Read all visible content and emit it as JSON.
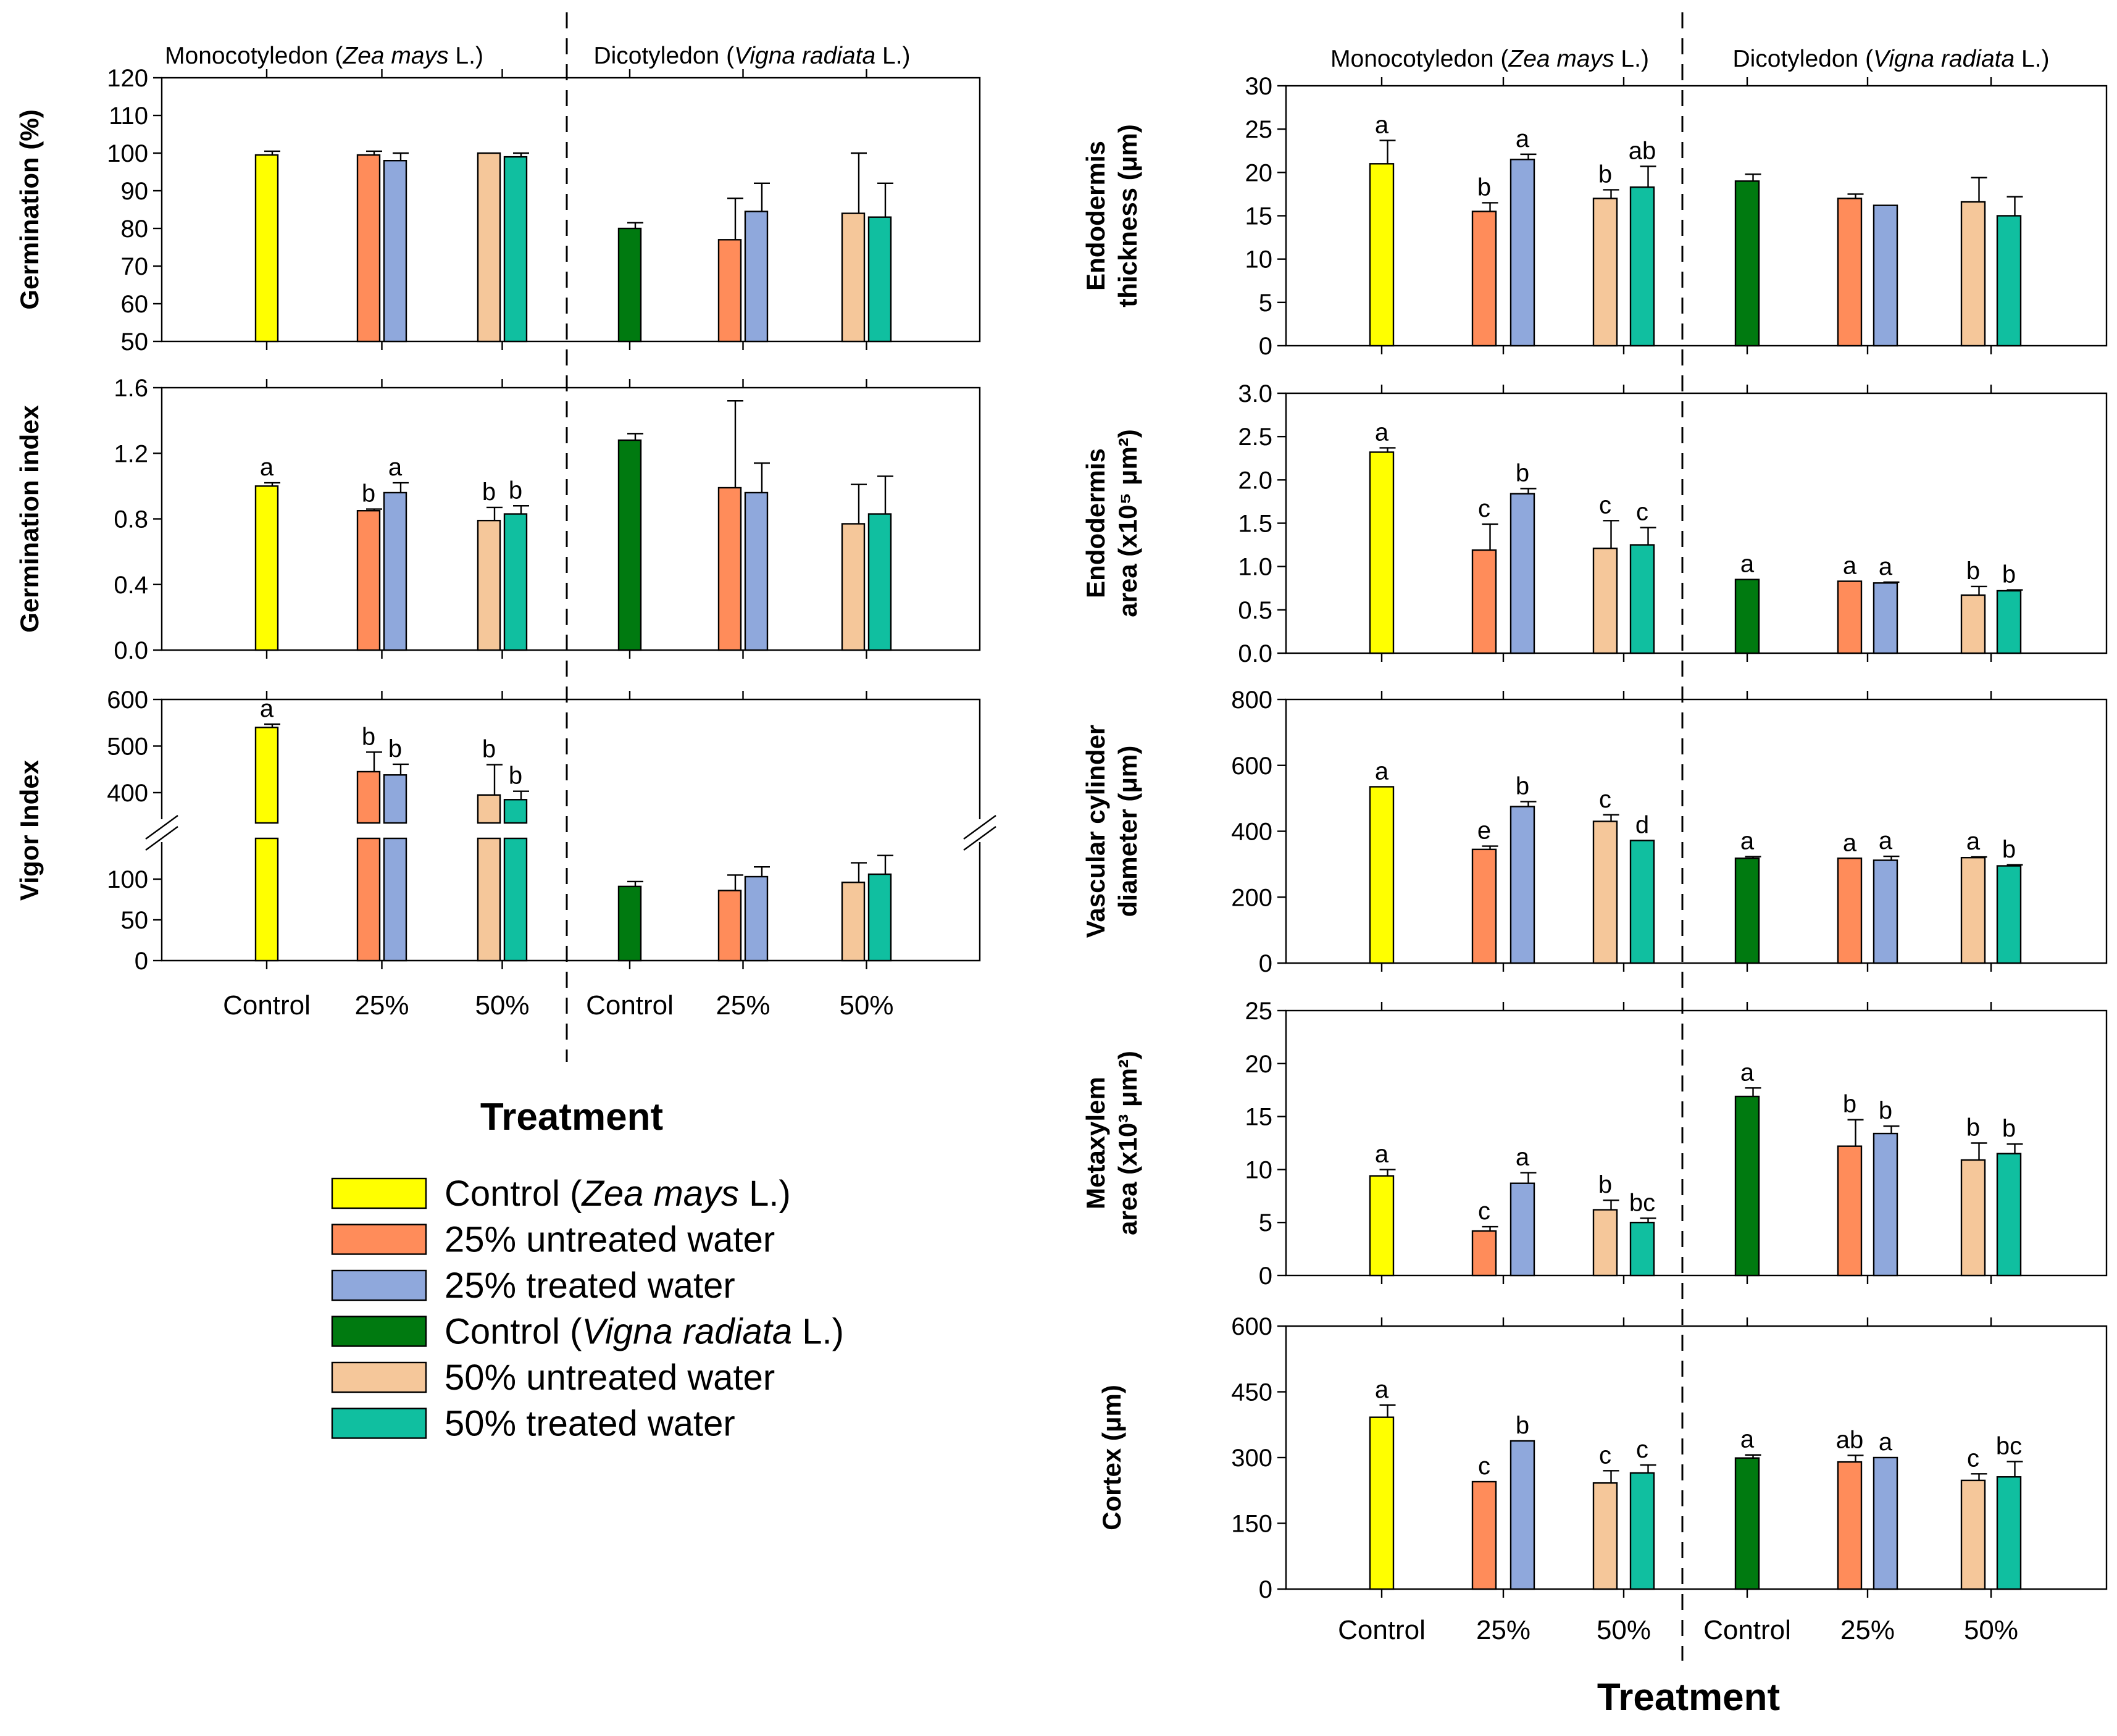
{
  "colors": {
    "control_zea": "#FFFF00",
    "untreated_25": "#FF8C5A",
    "treated_25": "#8FA8DC",
    "control_vigna": "#007A10",
    "untreated_50": "#F5C79A",
    "treated_50": "#10BFA0"
  },
  "headers": {
    "mono_prefix": "Monocotyledon (",
    "mono_species": "Zea mays",
    "mono_suffix": " L.)",
    "di_prefix": "Dicotyledon (",
    "di_species": "Vigna radiata",
    "di_suffix": " L.)"
  },
  "x_labels": [
    "Control",
    "25%",
    "50%",
    "Control",
    "25%",
    "50%"
  ],
  "x_title": "Treatment",
  "legend": [
    {
      "prefix": "Control (",
      "italic": "Zea mays",
      "suffix": " L.)",
      "color_key": "control_zea"
    },
    {
      "prefix": "25% untreated water",
      "italic": "",
      "suffix": "",
      "color_key": "untreated_25"
    },
    {
      "prefix": "25% treated water",
      "italic": "",
      "suffix": "",
      "color_key": "treated_25"
    },
    {
      "prefix": "Control (",
      "italic": "Vigna radiata",
      "suffix": " L.)",
      "color_key": "control_vigna"
    },
    {
      "prefix": "50% untreated water",
      "italic": "",
      "suffix": "",
      "color_key": "untreated_50"
    },
    {
      "prefix": "50% treated water",
      "italic": "",
      "suffix": "",
      "color_key": "treated_50"
    }
  ],
  "chart_data": [
    {
      "id": "germination",
      "type": "bar",
      "ylabel": "Germination (%)",
      "ylim": [
        50,
        120
      ],
      "yticks": [
        50,
        60,
        70,
        80,
        90,
        100,
        110,
        120
      ],
      "bars": [
        {
          "group": "Control",
          "species": "Zea mays",
          "series": "control_zea",
          "value": 99.5,
          "err": 1,
          "label": ""
        },
        {
          "group": "25%",
          "species": "Zea mays",
          "series": "untreated_25",
          "value": 99.5,
          "err": 1,
          "label": ""
        },
        {
          "group": "25%",
          "species": "Zea mays",
          "series": "treated_25",
          "value": 98,
          "err": 2,
          "label": ""
        },
        {
          "group": "50%",
          "species": "Zea mays",
          "series": "untreated_50",
          "value": 100,
          "err": 0,
          "label": ""
        },
        {
          "group": "50%",
          "species": "Zea mays",
          "series": "treated_50",
          "value": 99,
          "err": 1,
          "label": ""
        },
        {
          "group": "Control",
          "species": "Vigna radiata",
          "series": "control_vigna",
          "value": 80,
          "err": 1.5,
          "label": ""
        },
        {
          "group": "25%",
          "species": "Vigna radiata",
          "series": "untreated_25",
          "value": 77,
          "err": 11,
          "label": ""
        },
        {
          "group": "25%",
          "species": "Vigna radiata",
          "series": "treated_25",
          "value": 84.5,
          "err": 7.5,
          "label": ""
        },
        {
          "group": "50%",
          "species": "Vigna radiata",
          "series": "untreated_50",
          "value": 84,
          "err": 16,
          "label": ""
        },
        {
          "group": "50%",
          "species": "Vigna radiata",
          "series": "treated_50",
          "value": 83,
          "err": 9,
          "label": ""
        }
      ]
    },
    {
      "id": "germination-index",
      "type": "bar",
      "ylabel": "Germination index",
      "ylim": [
        0,
        1.6
      ],
      "yticks": [
        "0.0",
        "0.4",
        "0.8",
        "1.2",
        "1.6"
      ],
      "bars": [
        {
          "group": "Control",
          "species": "Zea mays",
          "series": "control_zea",
          "value": 1.0,
          "err": 0.02,
          "label": "a"
        },
        {
          "group": "25%",
          "species": "Zea mays",
          "series": "untreated_25",
          "value": 0.85,
          "err": 0.01,
          "label": "b"
        },
        {
          "group": "25%",
          "species": "Zea mays",
          "series": "treated_25",
          "value": 0.96,
          "err": 0.06,
          "label": "a"
        },
        {
          "group": "50%",
          "species": "Zea mays",
          "series": "untreated_50",
          "value": 0.79,
          "err": 0.08,
          "label": "b"
        },
        {
          "group": "50%",
          "species": "Zea mays",
          "series": "treated_50",
          "value": 0.83,
          "err": 0.05,
          "label": "b"
        },
        {
          "group": "Control",
          "species": "Vigna radiata",
          "series": "control_vigna",
          "value": 1.28,
          "err": 0.04,
          "label": ""
        },
        {
          "group": "25%",
          "species": "Vigna radiata",
          "series": "untreated_25",
          "value": 0.99,
          "err": 0.53,
          "label": ""
        },
        {
          "group": "25%",
          "species": "Vigna radiata",
          "series": "treated_25",
          "value": 0.96,
          "err": 0.18,
          "label": ""
        },
        {
          "group": "50%",
          "species": "Vigna radiata",
          "series": "untreated_50",
          "value": 0.77,
          "err": 0.24,
          "label": ""
        },
        {
          "group": "50%",
          "species": "Vigna radiata",
          "series": "treated_50",
          "value": 0.83,
          "err": 0.23,
          "label": ""
        }
      ]
    },
    {
      "id": "vigor-index",
      "type": "bar",
      "ylabel": "Vigor Index",
      "axis_break": true,
      "lower_range": [
        0,
        150
      ],
      "upper_range": [
        335,
        600
      ],
      "lower_ticks": [
        0,
        50,
        100
      ],
      "upper_ticks": [
        400,
        500,
        600
      ],
      "bars": [
        {
          "group": "Control",
          "species": "Zea mays",
          "series": "control_zea",
          "value": 540,
          "err": 7,
          "label": "a"
        },
        {
          "group": "25%",
          "species": "Zea mays",
          "series": "untreated_25",
          "value": 445,
          "err": 42,
          "label": "b"
        },
        {
          "group": "25%",
          "species": "Zea mays",
          "series": "treated_25",
          "value": 438,
          "err": 23,
          "label": "b"
        },
        {
          "group": "50%",
          "species": "Zea mays",
          "series": "untreated_50",
          "value": 395,
          "err": 65,
          "label": "b"
        },
        {
          "group": "50%",
          "species": "Zea mays",
          "series": "treated_50",
          "value": 385,
          "err": 18,
          "label": "b"
        },
        {
          "group": "Control",
          "species": "Vigna radiata",
          "series": "control_vigna",
          "value": 91,
          "err": 6,
          "label": ""
        },
        {
          "group": "25%",
          "species": "Vigna radiata",
          "series": "untreated_25",
          "value": 86,
          "err": 19,
          "label": ""
        },
        {
          "group": "25%",
          "species": "Vigna radiata",
          "series": "treated_25",
          "value": 103,
          "err": 12,
          "label": ""
        },
        {
          "group": "50%",
          "species": "Vigna radiata",
          "series": "untreated_50",
          "value": 96,
          "err": 24,
          "label": ""
        },
        {
          "group": "50%",
          "species": "Vigna radiata",
          "series": "treated_50",
          "value": 106,
          "err": 23,
          "label": ""
        }
      ]
    },
    {
      "id": "endodermis-thickness",
      "type": "bar",
      "ylabel_lines": [
        "Endodermis",
        "thickness (μm)"
      ],
      "ylim": [
        0,
        30
      ],
      "yticks": [
        0,
        5,
        10,
        15,
        20,
        25,
        30
      ],
      "bars": [
        {
          "group": "Control",
          "species": "Zea mays",
          "series": "control_zea",
          "value": 21,
          "err": 2.7,
          "label": "a"
        },
        {
          "group": "25%",
          "species": "Zea mays",
          "series": "untreated_25",
          "value": 15.5,
          "err": 1,
          "label": "b"
        },
        {
          "group": "25%",
          "species": "Zea mays",
          "series": "treated_25",
          "value": 21.5,
          "err": 0.6,
          "label": "a"
        },
        {
          "group": "50%",
          "species": "Zea mays",
          "series": "untreated_50",
          "value": 17,
          "err": 1,
          "label": "b"
        },
        {
          "group": "50%",
          "species": "Zea mays",
          "series": "treated_50",
          "value": 18.3,
          "err": 2.4,
          "label": "ab"
        },
        {
          "group": "Control",
          "species": "Vigna radiata",
          "series": "control_vigna",
          "value": 19,
          "err": 0.8,
          "label": ""
        },
        {
          "group": "25%",
          "species": "Vigna radiata",
          "series": "untreated_25",
          "value": 17,
          "err": 0.5,
          "label": ""
        },
        {
          "group": "25%",
          "species": "Vigna radiata",
          "series": "treated_25",
          "value": 16.2,
          "err": 0,
          "label": ""
        },
        {
          "group": "50%",
          "species": "Vigna radiata",
          "series": "untreated_50",
          "value": 16.6,
          "err": 2.8,
          "label": ""
        },
        {
          "group": "50%",
          "species": "Vigna radiata",
          "series": "treated_50",
          "value": 15,
          "err": 2.2,
          "label": ""
        }
      ]
    },
    {
      "id": "endodermis-area",
      "type": "bar",
      "ylabel_lines": [
        "Endodermis",
        "area (x10⁵ μm²)"
      ],
      "ylim": [
        0,
        3.0
      ],
      "yticks": [
        "0.0",
        "0.5",
        "1.0",
        "1.5",
        "2.0",
        "2.5",
        "3.0"
      ],
      "bars": [
        {
          "group": "Control",
          "species": "Zea mays",
          "series": "control_zea",
          "value": 2.32,
          "err": 0.05,
          "label": "a"
        },
        {
          "group": "25%",
          "species": "Zea mays",
          "series": "untreated_25",
          "value": 1.19,
          "err": 0.3,
          "label": "c"
        },
        {
          "group": "25%",
          "species": "Zea mays",
          "series": "treated_25",
          "value": 1.84,
          "err": 0.06,
          "label": "b"
        },
        {
          "group": "50%",
          "species": "Zea mays",
          "series": "untreated_50",
          "value": 1.21,
          "err": 0.32,
          "label": "c"
        },
        {
          "group": "50%",
          "species": "Zea mays",
          "series": "treated_50",
          "value": 1.25,
          "err": 0.2,
          "label": "c"
        },
        {
          "group": "Control",
          "species": "Vigna radiata",
          "series": "control_vigna",
          "value": 0.85,
          "err": 0,
          "label": "a"
        },
        {
          "group": "25%",
          "species": "Vigna radiata",
          "series": "untreated_25",
          "value": 0.83,
          "err": 0,
          "label": "a"
        },
        {
          "group": "25%",
          "species": "Vigna radiata",
          "series": "treated_25",
          "value": 0.81,
          "err": 0.01,
          "label": "a"
        },
        {
          "group": "50%",
          "species": "Vigna radiata",
          "series": "untreated_50",
          "value": 0.67,
          "err": 0.1,
          "label": "b"
        },
        {
          "group": "50%",
          "species": "Vigna radiata",
          "series": "treated_50",
          "value": 0.72,
          "err": 0.01,
          "label": "b"
        }
      ]
    },
    {
      "id": "vascular-cylinder",
      "type": "bar",
      "ylabel_lines": [
        "Vascular cylinder",
        "diameter (μm)"
      ],
      "ylim": [
        0,
        800
      ],
      "yticks": [
        0,
        200,
        400,
        600,
        800
      ],
      "bars": [
        {
          "group": "Control",
          "species": "Zea mays",
          "series": "control_zea",
          "value": 535,
          "err": 0,
          "label": "a"
        },
        {
          "group": "25%",
          "species": "Zea mays",
          "series": "untreated_25",
          "value": 345,
          "err": 10,
          "label": "e"
        },
        {
          "group": "25%",
          "species": "Zea mays",
          "series": "treated_25",
          "value": 475,
          "err": 15,
          "label": "b"
        },
        {
          "group": "50%",
          "species": "Zea mays",
          "series": "untreated_50",
          "value": 430,
          "err": 20,
          "label": "c"
        },
        {
          "group": "50%",
          "species": "Zea mays",
          "series": "treated_50",
          "value": 372,
          "err": 0,
          "label": "d"
        },
        {
          "group": "Control",
          "species": "Vigna radiata",
          "series": "control_vigna",
          "value": 318,
          "err": 5,
          "label": "a"
        },
        {
          "group": "25%",
          "species": "Vigna radiata",
          "series": "untreated_25",
          "value": 318,
          "err": 0,
          "label": "a"
        },
        {
          "group": "25%",
          "species": "Vigna radiata",
          "series": "treated_25",
          "value": 312,
          "err": 12,
          "label": "a"
        },
        {
          "group": "50%",
          "species": "Vigna radiata",
          "series": "untreated_50",
          "value": 320,
          "err": 2,
          "label": "a"
        },
        {
          "group": "50%",
          "species": "Vigna radiata",
          "series": "treated_50",
          "value": 295,
          "err": 3,
          "label": "b"
        }
      ]
    },
    {
      "id": "metaxylem-area",
      "type": "bar",
      "ylabel_lines": [
        "Metaxylem",
        "area (x10³ μm²)"
      ],
      "ylim": [
        0,
        25
      ],
      "yticks": [
        0,
        5,
        10,
        15,
        20,
        25
      ],
      "bars": [
        {
          "group": "Control",
          "species": "Zea mays",
          "series": "control_zea",
          "value": 9.4,
          "err": 0.6,
          "label": "a"
        },
        {
          "group": "25%",
          "species": "Zea mays",
          "series": "untreated_25",
          "value": 4.2,
          "err": 0.4,
          "label": "c"
        },
        {
          "group": "25%",
          "species": "Zea mays",
          "series": "treated_25",
          "value": 8.7,
          "err": 1.0,
          "label": "a"
        },
        {
          "group": "50%",
          "species": "Zea mays",
          "series": "untreated_50",
          "value": 6.2,
          "err": 0.9,
          "label": "b"
        },
        {
          "group": "50%",
          "species": "Zea mays",
          "series": "treated_50",
          "value": 5.0,
          "err": 0.4,
          "label": "bc"
        },
        {
          "group": "Control",
          "species": "Vigna radiata",
          "series": "control_vigna",
          "value": 16.9,
          "err": 0.8,
          "label": "a"
        },
        {
          "group": "25%",
          "species": "Vigna radiata",
          "series": "untreated_25",
          "value": 12.2,
          "err": 2.5,
          "label": "b"
        },
        {
          "group": "25%",
          "species": "Vigna radiata",
          "series": "treated_25",
          "value": 13.4,
          "err": 0.7,
          "label": "b"
        },
        {
          "group": "50%",
          "species": "Vigna radiata",
          "series": "untreated_50",
          "value": 10.9,
          "err": 1.6,
          "label": "b"
        },
        {
          "group": "50%",
          "species": "Vigna radiata",
          "series": "treated_50",
          "value": 11.5,
          "err": 0.9,
          "label": "b"
        }
      ]
    },
    {
      "id": "cortex",
      "type": "bar",
      "ylabel": "Cortex (μm)",
      "ylim": [
        0,
        600
      ],
      "yticks": [
        0,
        150,
        300,
        450,
        600
      ],
      "bars": [
        {
          "group": "Control",
          "species": "Zea mays",
          "series": "control_zea",
          "value": 392,
          "err": 28,
          "label": "a"
        },
        {
          "group": "25%",
          "species": "Zea mays",
          "series": "untreated_25",
          "value": 245,
          "err": 0,
          "label": "c"
        },
        {
          "group": "25%",
          "species": "Zea mays",
          "series": "treated_25",
          "value": 338,
          "err": 0,
          "label": "b"
        },
        {
          "group": "50%",
          "species": "Zea mays",
          "series": "untreated_50",
          "value": 242,
          "err": 28,
          "label": "c"
        },
        {
          "group": "50%",
          "species": "Zea mays",
          "series": "treated_50",
          "value": 265,
          "err": 18,
          "label": "c"
        },
        {
          "group": "Control",
          "species": "Vigna radiata",
          "series": "control_vigna",
          "value": 299,
          "err": 7,
          "label": "a"
        },
        {
          "group": "25%",
          "species": "Vigna radiata",
          "series": "untreated_25",
          "value": 290,
          "err": 15,
          "label": "ab"
        },
        {
          "group": "25%",
          "species": "Vigna radiata",
          "series": "treated_25",
          "value": 300,
          "err": 0,
          "label": "a"
        },
        {
          "group": "50%",
          "species": "Vigna radiata",
          "series": "untreated_50",
          "value": 248,
          "err": 15,
          "label": "c"
        },
        {
          "group": "50%",
          "species": "Vigna radiata",
          "series": "treated_50",
          "value": 256,
          "err": 35,
          "label": "bc"
        }
      ]
    }
  ]
}
